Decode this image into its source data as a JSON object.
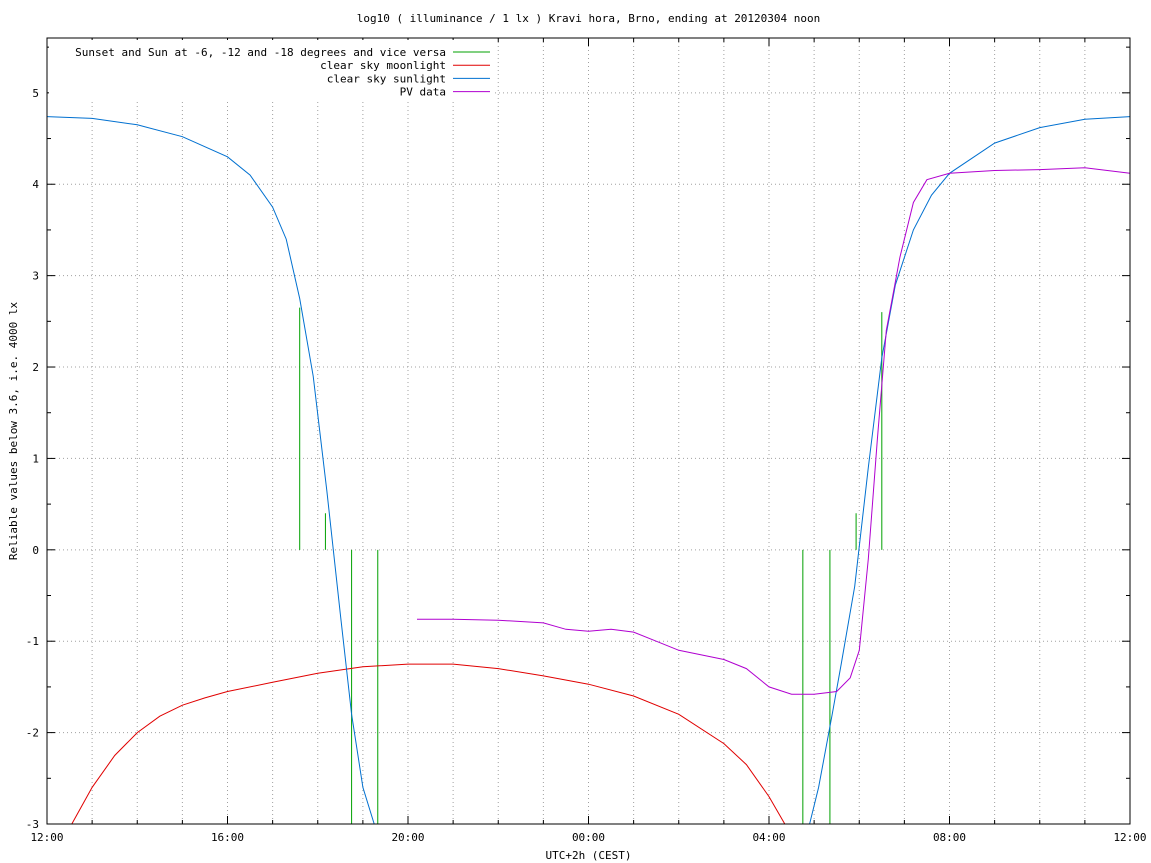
{
  "chart_data": {
    "type": "line",
    "title": "log10 ( illuminance / 1 lx ) Kravi hora, Brno, ending at 20120304 noon",
    "xlabel": "UTC+2h (CEST)",
    "ylabel": "Reliable values below 3.6, i.e. 4000 lx",
    "x_unit": "hours since 12:00 (x-axis spans 12:00 to next day 12:00)",
    "xlim": [
      0,
      24
    ],
    "ylim": [
      -3,
      5.6
    ],
    "x_ticks": [
      0,
      4,
      8,
      12,
      16,
      20,
      24
    ],
    "x_tick_labels": [
      "12:00",
      "16:00",
      "20:00",
      "00:00",
      "04:00",
      "08:00",
      "12:00"
    ],
    "y_ticks": [
      -3,
      -2,
      -1,
      0,
      1,
      2,
      3,
      4,
      5
    ],
    "y_tick_labels": [
      "-3",
      "-2",
      "-1",
      "0",
      "1",
      "2",
      "3",
      "4",
      "5"
    ],
    "grid": true,
    "legend_position": "top-left",
    "series": [
      {
        "name": "Sunset and Sun at -6, -12 and -18 degrees and vice versa",
        "color": "#00a000",
        "kind": "vertical_lines",
        "segments": [
          {
            "x": 5.6,
            "y0": 0,
            "y1": 2.65
          },
          {
            "x": 6.17,
            "y0": 0,
            "y1": 0.4
          },
          {
            "x": 6.75,
            "y0": -3,
            "y1": 0
          },
          {
            "x": 7.33,
            "y0": -3,
            "y1": 0
          },
          {
            "x": 16.75,
            "y0": -3,
            "y1": 0
          },
          {
            "x": 17.35,
            "y0": -3,
            "y1": 0
          },
          {
            "x": 17.93,
            "y0": 0,
            "y1": 0.4
          },
          {
            "x": 18.5,
            "y0": 0,
            "y1": 2.6
          }
        ]
      },
      {
        "name": "clear sky moonlight",
        "color": "#e00000",
        "points": [
          [
            0.55,
            -3.0
          ],
          [
            1.0,
            -2.6
          ],
          [
            1.5,
            -2.25
          ],
          [
            2.0,
            -2.0
          ],
          [
            2.5,
            -1.82
          ],
          [
            3.0,
            -1.7
          ],
          [
            3.5,
            -1.62
          ],
          [
            4.0,
            -1.55
          ],
          [
            5.0,
            -1.45
          ],
          [
            6.0,
            -1.35
          ],
          [
            7.0,
            -1.28
          ],
          [
            8.0,
            -1.25
          ],
          [
            9.0,
            -1.25
          ],
          [
            10.0,
            -1.3
          ],
          [
            11.0,
            -1.38
          ],
          [
            12.0,
            -1.47
          ],
          [
            13.0,
            -1.6
          ],
          [
            14.0,
            -1.8
          ],
          [
            15.0,
            -2.12
          ],
          [
            15.5,
            -2.35
          ],
          [
            16.0,
            -2.7
          ],
          [
            16.35,
            -3.0
          ]
        ]
      },
      {
        "name": "clear sky sunlight",
        "color": "#0070d0",
        "points": [
          [
            0.0,
            4.74
          ],
          [
            1.0,
            4.72
          ],
          [
            2.0,
            4.65
          ],
          [
            3.0,
            4.52
          ],
          [
            4.0,
            4.3
          ],
          [
            4.5,
            4.1
          ],
          [
            5.0,
            3.75
          ],
          [
            5.3,
            3.4
          ],
          [
            5.6,
            2.75
          ],
          [
            5.9,
            1.9
          ],
          [
            6.2,
            0.65
          ],
          [
            6.5,
            -0.7
          ],
          [
            6.75,
            -1.8
          ],
          [
            7.0,
            -2.6
          ],
          [
            7.25,
            -3.0
          ],
          [
            16.9,
            -3.0
          ],
          [
            17.1,
            -2.6
          ],
          [
            17.4,
            -1.8
          ],
          [
            17.6,
            -1.25
          ],
          [
            17.9,
            -0.4
          ],
          [
            18.2,
            0.9
          ],
          [
            18.5,
            2.1
          ],
          [
            18.8,
            2.9
          ],
          [
            19.2,
            3.5
          ],
          [
            19.6,
            3.88
          ],
          [
            20.0,
            4.12
          ],
          [
            21.0,
            4.45
          ],
          [
            22.0,
            4.62
          ],
          [
            23.0,
            4.71
          ],
          [
            24.0,
            4.74
          ]
        ]
      },
      {
        "name": "PV data",
        "color": "#b000d0",
        "points": [
          [
            8.2,
            -0.76
          ],
          [
            9.0,
            -0.76
          ],
          [
            10.0,
            -0.77
          ],
          [
            11.0,
            -0.8
          ],
          [
            11.5,
            -0.87
          ],
          [
            12.0,
            -0.89
          ],
          [
            12.5,
            -0.87
          ],
          [
            13.0,
            -0.9
          ],
          [
            13.5,
            -1.0
          ],
          [
            14.0,
            -1.1
          ],
          [
            15.0,
            -1.2
          ],
          [
            15.5,
            -1.3
          ],
          [
            16.0,
            -1.5
          ],
          [
            16.5,
            -1.58
          ],
          [
            17.0,
            -1.58
          ],
          [
            17.5,
            -1.55
          ],
          [
            17.8,
            -1.4
          ],
          [
            18.0,
            -1.1
          ],
          [
            18.2,
            -0.1
          ],
          [
            18.4,
            1.2
          ],
          [
            18.6,
            2.4
          ],
          [
            18.9,
            3.2
          ],
          [
            19.2,
            3.8
          ],
          [
            19.5,
            4.05
          ],
          [
            20.0,
            4.12
          ],
          [
            21.0,
            4.15
          ],
          [
            22.0,
            4.16
          ],
          [
            23.0,
            4.18
          ],
          [
            23.5,
            4.15
          ],
          [
            24.0,
            4.12
          ]
        ]
      }
    ]
  }
}
